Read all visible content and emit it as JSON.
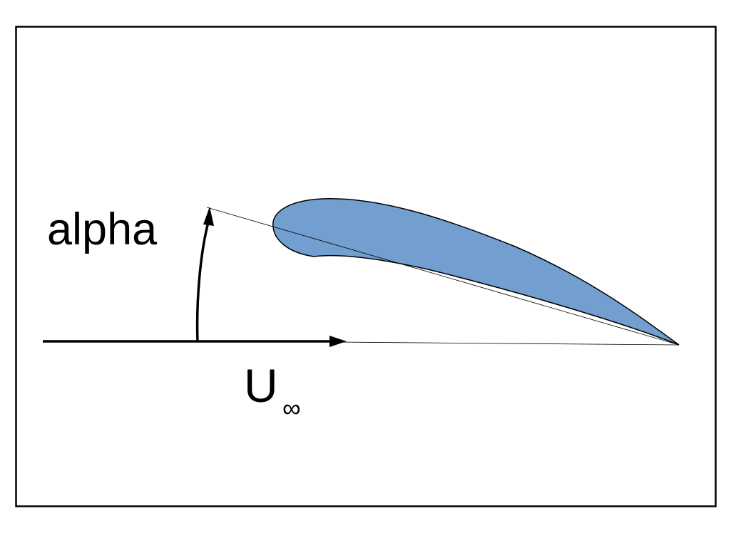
{
  "labels": {
    "angle": "alpha",
    "velocity_main": "U",
    "velocity_sub": "∞"
  },
  "colors": {
    "airfoil_fill": "#729fcf",
    "line": "#000000",
    "background": "#ffffff"
  }
}
